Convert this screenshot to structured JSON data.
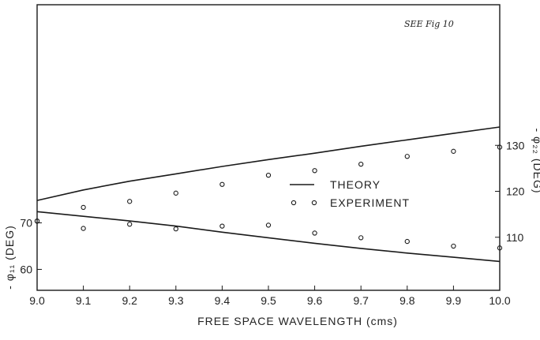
{
  "chart_data": {
    "type": "line",
    "note": "SEE Fig 10",
    "xlabel": "FREE SPACE WAVELENGTH (cms)",
    "ylabel_left": "- φ₁₁ (DEG)",
    "ylabel_right": "- φ₂₂ (DEG)",
    "x_ticks": [
      "9.0",
      "9.1",
      "9.2",
      "9.3",
      "9.4",
      "9.5",
      "9.6",
      "9.7",
      "9.8",
      "9.9",
      "10.0"
    ],
    "xlim": [
      9.0,
      10.0
    ],
    "left_axis": {
      "ticks": [
        60,
        70
      ],
      "range": [
        55.5,
        75
      ]
    },
    "right_axis": {
      "ticks": [
        110,
        120,
        130
      ],
      "range": [
        100,
        140
      ]
    },
    "legend": {
      "position": "right-center",
      "theory_label": "THEORY",
      "experiment_label": "EXPERIMENT"
    },
    "grid": false,
    "series": [
      {
        "name": "THEORY",
        "axis": "right",
        "style": "line",
        "x": [
          9.0,
          9.1,
          9.2,
          9.3,
          9.4,
          9.5,
          9.6,
          9.7,
          9.8,
          9.9,
          10.0
        ],
        "y": [
          118.0,
          120.3,
          122.2,
          123.8,
          125.4,
          126.9,
          128.3,
          129.8,
          131.2,
          132.6,
          134.0
        ]
      },
      {
        "name": "EXPERIMENT",
        "axis": "right",
        "style": "circles",
        "x": [
          9.1,
          9.2,
          9.3,
          9.4,
          9.5,
          9.6,
          9.7,
          9.8,
          9.9,
          10.0
        ],
        "y": [
          116.5,
          117.8,
          119.6,
          121.5,
          123.5,
          124.5,
          125.9,
          127.6,
          128.7,
          129.6
        ]
      },
      {
        "name": "THEORY",
        "axis": "left",
        "style": "line",
        "x": [
          9.0,
          9.1,
          9.2,
          9.3,
          9.4,
          9.5,
          9.6,
          9.7,
          9.8,
          9.9,
          10.0
        ],
        "y": [
          72.4,
          71.4,
          70.4,
          69.3,
          68.0,
          66.8,
          65.6,
          64.5,
          63.5,
          62.6,
          61.7
        ]
      },
      {
        "name": "EXPERIMENT",
        "axis": "left",
        "style": "circles",
        "x": [
          9.0,
          9.1,
          9.2,
          9.3,
          9.4,
          9.5,
          9.6,
          9.7,
          9.8,
          9.9,
          10.0
        ],
        "y": [
          70.4,
          68.8,
          69.7,
          68.7,
          69.3,
          69.5,
          67.8,
          66.8,
          66.0,
          65.0,
          64.6
        ]
      },
      {
        "name": "EXPERIMENT",
        "axis": "right",
        "style": "circles",
        "x": [
          9.0
        ],
        "y": [
          113.5
        ]
      }
    ]
  }
}
